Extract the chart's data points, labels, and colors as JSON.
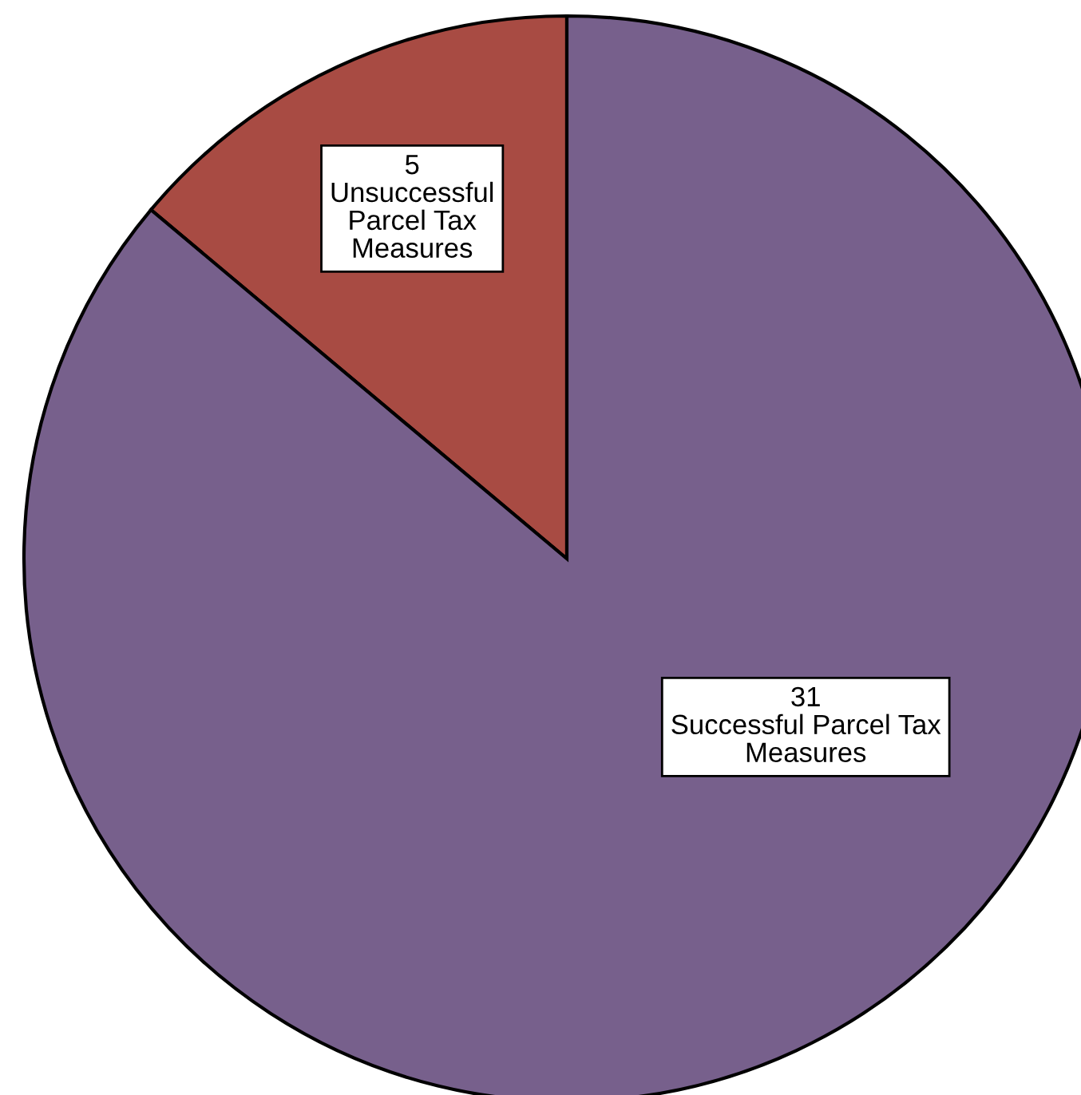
{
  "chart_data": {
    "type": "pie",
    "categories": [
      "Unsuccessful\nParcel Tax\nMeasures",
      "Successful Parcel Tax\nMeasures"
    ],
    "values": [
      5,
      31
    ],
    "colors": [
      "#a84b43",
      "#77608c"
    ],
    "data_labels": true,
    "legend": false
  }
}
